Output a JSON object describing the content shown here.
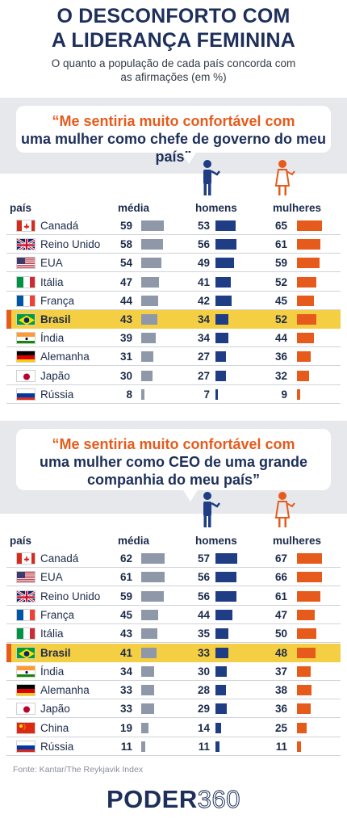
{
  "header": {
    "title_line1": "O DESCONFORTO COM",
    "title_line2": "A LIDERANÇA FEMININA",
    "subtitle_line1": "O quanto a população de cada país concorda com",
    "subtitle_line2": "as afirmações (em %)"
  },
  "columns": {
    "country": "país",
    "avg": "média",
    "men": "homens",
    "women": "mulheres"
  },
  "colors": {
    "avg": "#8e98a8",
    "men": "#1f3d84",
    "women": "#e65b1c",
    "highlight": "#f5cf43",
    "quote": "#e65b1c",
    "navy": "#1d2f5a"
  },
  "chart_data": [
    {
      "type": "bar",
      "title": "“Me sentiria muito confortável com uma mulher como chefe de governo do meu país”",
      "quote_lines": [
        "“Me sentiria muito confortável com",
        "uma mulher como chefe de governo do meu país”"
      ],
      "highlight": "Brasil",
      "categories": [
        "Canadá",
        "Reino Unido",
        "EUA",
        "Itália",
        "França",
        "Brasil",
        "Índia",
        "Alemanha",
        "Japão",
        "Rússia"
      ],
      "flags": [
        "ca",
        "uk",
        "us",
        "it",
        "fr",
        "br",
        "in",
        "de",
        "jp",
        "ru"
      ],
      "series": [
        {
          "name": "média",
          "values": [
            59,
            58,
            54,
            47,
            44,
            43,
            39,
            31,
            30,
            8
          ]
        },
        {
          "name": "homens",
          "values": [
            53,
            56,
            49,
            41,
            42,
            34,
            34,
            27,
            27,
            7
          ]
        },
        {
          "name": "mulheres",
          "values": [
            65,
            61,
            59,
            52,
            45,
            52,
            44,
            36,
            32,
            9
          ]
        }
      ]
    },
    {
      "type": "bar",
      "title": "“Me sentiria muito confortável com uma mulher como CEO de uma grande companhia do meu país”",
      "quote_lines": [
        "“Me sentiria muito confortável com",
        "uma mulher como CEO de uma grande",
        "companhia do meu país”"
      ],
      "highlight": "Brasil",
      "categories": [
        "Canadá",
        "EUA",
        "Reino Unido",
        "França",
        "Itália",
        "Brasil",
        "Índia",
        "Alemanha",
        "Japão",
        "China",
        "Rússia"
      ],
      "flags": [
        "ca",
        "us",
        "uk",
        "fr",
        "it",
        "br",
        "in",
        "de",
        "jp",
        "cn",
        "ru"
      ],
      "series": [
        {
          "name": "média",
          "values": [
            62,
            61,
            59,
            45,
            43,
            41,
            34,
            33,
            33,
            19,
            11
          ]
        },
        {
          "name": "homens",
          "values": [
            57,
            56,
            56,
            44,
            35,
            33,
            30,
            28,
            29,
            14,
            11
          ]
        },
        {
          "name": "mulheres",
          "values": [
            67,
            66,
            61,
            47,
            50,
            48,
            37,
            38,
            36,
            25,
            11
          ]
        }
      ]
    }
  ],
  "footer": {
    "source": "Fonte: Kantar/The Reykjavik Index",
    "logo_part1": "PODER",
    "logo_part2": "360"
  }
}
